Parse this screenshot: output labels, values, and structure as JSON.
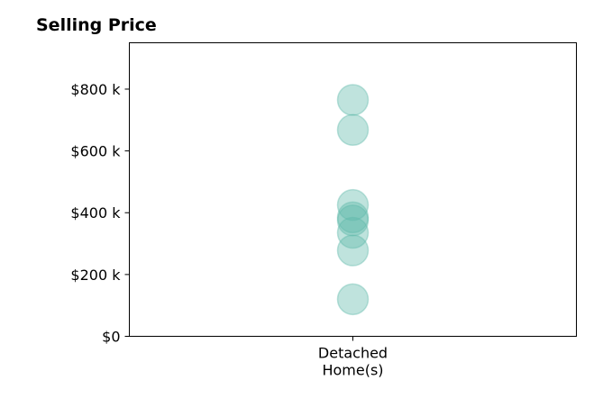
{
  "chart_data": {
    "type": "scatter",
    "title": "Selling Price",
    "xlabel": "",
    "ylabel": "",
    "categories": [
      "Detached\nHome(s)"
    ],
    "series": [
      {
        "category": "Detached\nHome(s)",
        "values": [
          765000,
          668000,
          425000,
          385000,
          375000,
          335000,
          278000,
          120000
        ]
      }
    ],
    "ylim": [
      0,
      950000
    ],
    "yticks": [
      {
        "value": 0,
        "label": "$0"
      },
      {
        "value": 200000,
        "label": "$200 k"
      },
      {
        "value": 400000,
        "label": "$400 k"
      },
      {
        "value": 600000,
        "label": "$600 k"
      },
      {
        "value": 800000,
        "label": "$800 k"
      }
    ],
    "marker_color": "#5fb8ab",
    "marker_opacity": 0.4,
    "grid": false,
    "legend": "none"
  }
}
